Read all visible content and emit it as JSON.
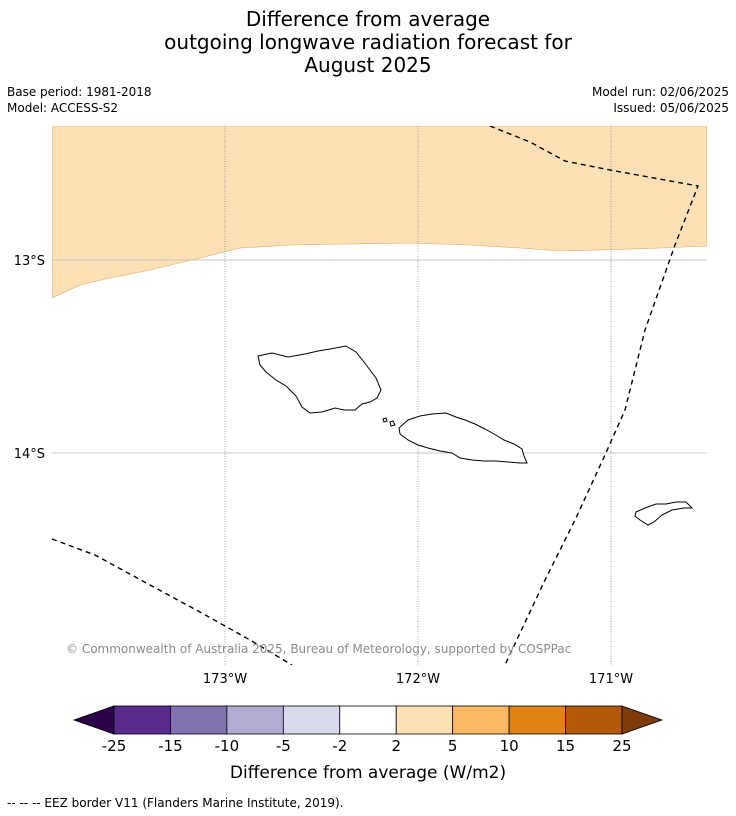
{
  "title": {
    "line1": "Difference from average",
    "line2": "outgoing longwave radiation forecast for",
    "line3": "August 2025"
  },
  "meta": {
    "base_period": "Base period: 1981-2018",
    "model": "Model: ACCESS-S2",
    "model_run": "Model run: 02/06/2025",
    "issued": "Issued: 05/06/2025"
  },
  "map": {
    "lat_labels": [
      "13°S",
      "14°S"
    ],
    "lon_labels": [
      "173°W",
      "172°W",
      "171°W"
    ],
    "copyright": "© Commonwealth of Australia 2025, Bureau of Meteorology, supported by COSPPac",
    "anomaly_region_color": "#fde0b6",
    "land_outline_color": "#000000",
    "eez_line_style": "dashed"
  },
  "colorbar": {
    "colors": [
      "#2d004b",
      "#5b2a8d",
      "#8273b0",
      "#b2abd2",
      "#d8daeb",
      "#ffffff",
      "#fee0b6",
      "#fdb863",
      "#e08214",
      "#b35806",
      "#7f3b08"
    ],
    "tick_labels": [
      "-25",
      "-15",
      "-10",
      "-5",
      "-2",
      "2",
      "5",
      "10",
      "15",
      "25"
    ],
    "label": "Difference from average (W/m2)"
  },
  "footer": "--  --  -- EEZ border V11 (Flanders Marine Institute, 2019)."
}
